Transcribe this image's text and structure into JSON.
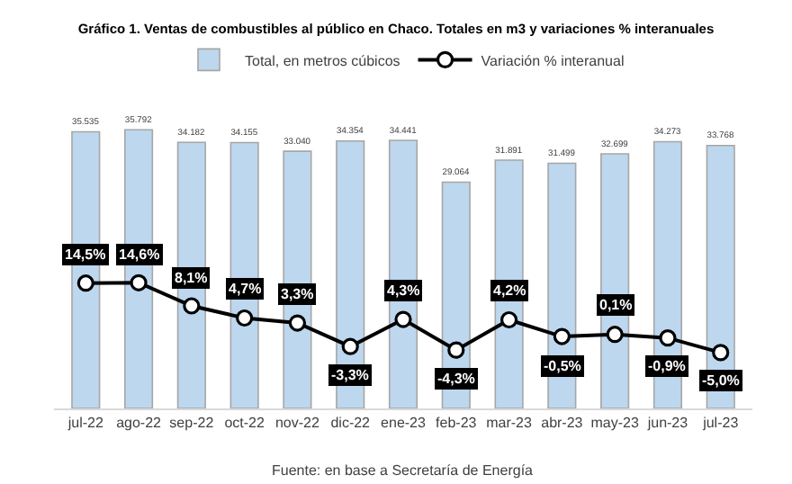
{
  "chart_data": {
    "type": "bar",
    "title": "Gráfico 1. Ventas de combustibles al público en Chaco. Totales en m3 y variaciones % interanuales",
    "categories": [
      "jul-22",
      "ago-22",
      "sep-22",
      "oct-22",
      "nov-22",
      "dic-22",
      "ene-23",
      "feb-23",
      "mar-23",
      "abr-23",
      "may-23",
      "jun-23",
      "jul-23"
    ],
    "series": [
      {
        "name": "Total, en metros cúbicos",
        "color": "#bdd7ee",
        "values": [
          35535,
          35792,
          34182,
          34155,
          33040,
          34354,
          34441,
          29064,
          31891,
          31499,
          32699,
          34273,
          33768
        ],
        "value_labels": [
          "35.535",
          "35.792",
          "34.182",
          "34.155",
          "33.040",
          "34.354",
          "34.441",
          "29.064",
          "31.891",
          "31.499",
          "32.699",
          "34.273",
          "33.768"
        ]
      },
      {
        "name": "Variación % interanual",
        "type": "line",
        "axis": "y2",
        "color": "#000000",
        "marker": "circle",
        "values": [
          14.5,
          14.6,
          8.1,
          4.7,
          3.3,
          -3.3,
          4.3,
          -4.3,
          4.2,
          -0.5,
          0.1,
          -0.9,
          -5.0
        ],
        "value_labels": [
          "14,5%",
          "14,6%",
          "8,1%",
          "4,7%",
          "3,3%",
          "-3,3%",
          "4,3%",
          "-4,3%",
          "4,2%",
          "-0,5%",
          "0,1%",
          "-0,9%",
          "-5,0%"
        ]
      }
    ],
    "tick_labels": "x",
    "legend": "top",
    "annotations": [
      "Fuente: en base a Secretaría de Energía"
    ]
  }
}
